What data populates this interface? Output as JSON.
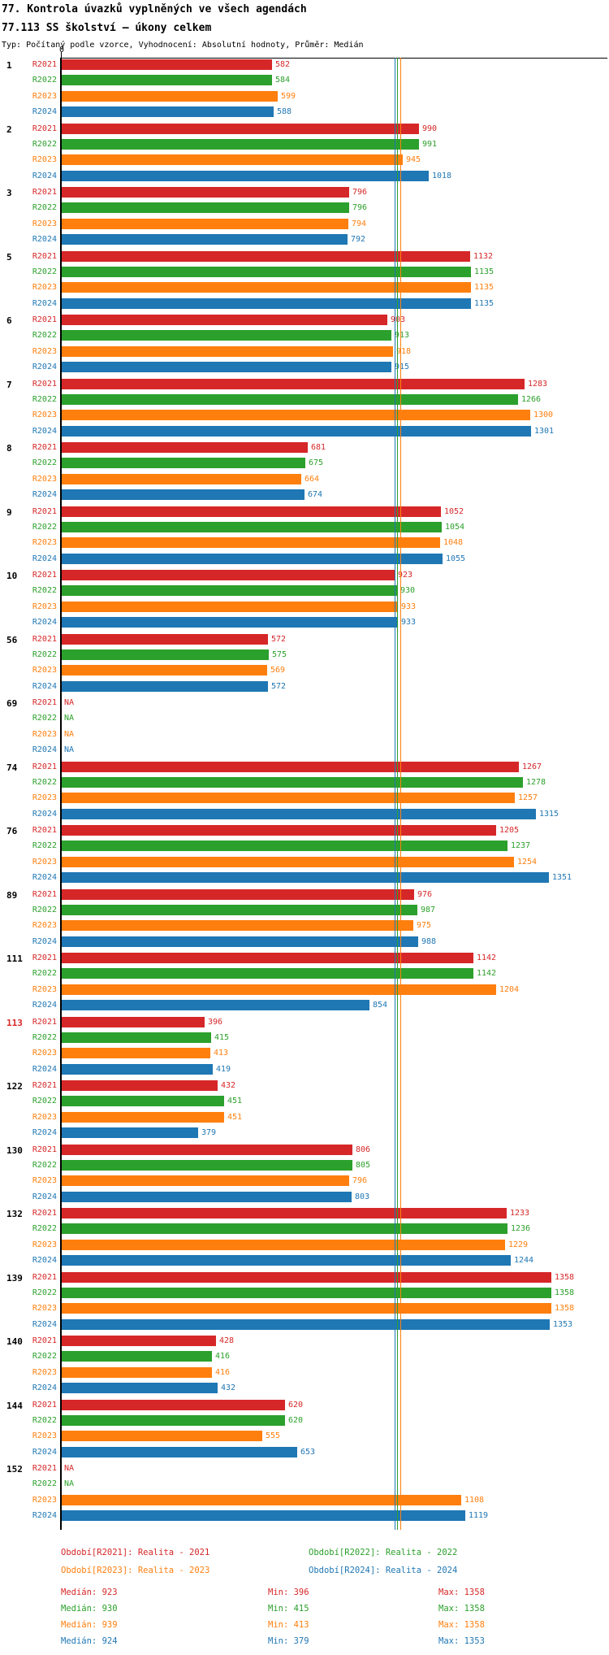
{
  "header": {
    "title": "77. Kontrola úvazků vyplněných ve všech agendách",
    "subtitle": "77.113 SS školství – úkony celkem",
    "meta": "Typ: Počítaný podle vzorce, Vyhodnocení: Absolutní hodnoty, Průměr: Medián"
  },
  "chart_data": {
    "type": "bar",
    "orientation": "horizontal",
    "x_axis": {
      "zero_label": "0",
      "min": 0,
      "approx_max_units": 1515,
      "gridlines": false
    },
    "series": [
      "R2021",
      "R2022",
      "R2023",
      "R2024"
    ],
    "series_colors": {
      "R2021": "#d62728",
      "R2022": "#2ca02c",
      "R2023": "#ff7f0e",
      "R2024": "#1f77b4"
    },
    "groups": [
      {
        "id": "1",
        "highlight": false,
        "values": [
          582,
          584,
          599,
          588
        ]
      },
      {
        "id": "2",
        "highlight": false,
        "values": [
          990,
          991,
          945,
          1018
        ]
      },
      {
        "id": "3",
        "highlight": false,
        "values": [
          796,
          796,
          794,
          792
        ]
      },
      {
        "id": "5",
        "highlight": false,
        "values": [
          1132,
          1135,
          1135,
          1135
        ]
      },
      {
        "id": "6",
        "highlight": false,
        "values": [
          903,
          913,
          918,
          915
        ]
      },
      {
        "id": "7",
        "highlight": false,
        "values": [
          1283,
          1266,
          1300,
          1301
        ]
      },
      {
        "id": "8",
        "highlight": false,
        "values": [
          681,
          675,
          664,
          674
        ]
      },
      {
        "id": "9",
        "highlight": false,
        "values": [
          1052,
          1054,
          1048,
          1055
        ]
      },
      {
        "id": "10",
        "highlight": false,
        "values": [
          923,
          930,
          933,
          933
        ]
      },
      {
        "id": "56",
        "highlight": false,
        "values": [
          572,
          575,
          569,
          572
        ]
      },
      {
        "id": "69",
        "highlight": false,
        "values": [
          "NA",
          "NA",
          "NA",
          "NA"
        ]
      },
      {
        "id": "74",
        "highlight": false,
        "values": [
          1267,
          1278,
          1257,
          1315
        ]
      },
      {
        "id": "76",
        "highlight": false,
        "values": [
          1205,
          1237,
          1254,
          1351
        ]
      },
      {
        "id": "89",
        "highlight": false,
        "values": [
          976,
          987,
          975,
          988
        ]
      },
      {
        "id": "111",
        "highlight": false,
        "values": [
          1142,
          1142,
          1204,
          854
        ]
      },
      {
        "id": "113",
        "highlight": true,
        "values": [
          396,
          415,
          413,
          419
        ]
      },
      {
        "id": "122",
        "highlight": false,
        "values": [
          432,
          451,
          451,
          379
        ]
      },
      {
        "id": "130",
        "highlight": false,
        "values": [
          806,
          805,
          796,
          803
        ]
      },
      {
        "id": "132",
        "highlight": false,
        "values": [
          1233,
          1236,
          1229,
          1244
        ]
      },
      {
        "id": "139",
        "highlight": false,
        "values": [
          1358,
          1358,
          1358,
          1353
        ]
      },
      {
        "id": "140",
        "highlight": false,
        "values": [
          428,
          416,
          416,
          432
        ]
      },
      {
        "id": "144",
        "highlight": false,
        "values": [
          620,
          620,
          555,
          653
        ]
      },
      {
        "id": "152",
        "highlight": false,
        "values": [
          "NA",
          "NA",
          1108,
          1119
        ]
      }
    ],
    "medians": {
      "R2021": 923,
      "R2022": 930,
      "R2023": 939,
      "R2024": 924
    },
    "highlight_id_color": "#d62728",
    "legend": [
      {
        "label": "Období[R2021]: Realita - 2021",
        "color": "#d62728"
      },
      {
        "label": "Období[R2022]: Realita - 2022",
        "color": "#2ca02c"
      },
      {
        "label": "Období[R2023]: Realita - 2023",
        "color": "#ff7f0e"
      },
      {
        "label": "Období[R2024]: Realita - 2024",
        "color": "#1f77b4"
      }
    ],
    "stats": [
      {
        "median": "Medián: 923",
        "min": "Min: 396",
        "max": "Max: 1358",
        "color": "#d62728"
      },
      {
        "median": "Medián: 930",
        "min": "Min: 415",
        "max": "Max: 1358",
        "color": "#2ca02c"
      },
      {
        "median": "Medián: 939",
        "min": "Min: 413",
        "max": "Max: 1358",
        "color": "#ff7f0e"
      },
      {
        "median": "Medián: 924",
        "min": "Min: 379",
        "max": "Max: 1353",
        "color": "#1f77b4"
      }
    ]
  }
}
